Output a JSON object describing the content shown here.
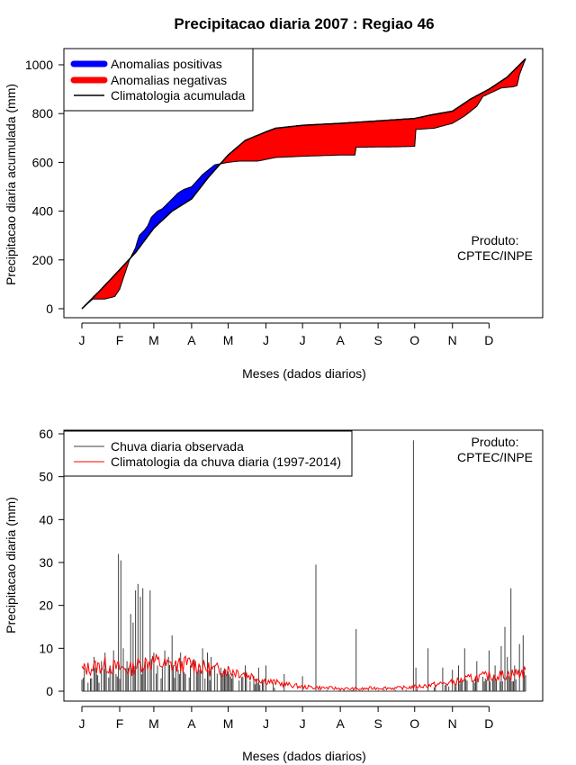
{
  "chart_data": [
    {
      "type": "area",
      "title": "Precipitacao diaria 2007 : Regiao 46",
      "xlabel": "Meses (dados diarios)",
      "ylabel": "Precipitacao diaria acumulada (mm)",
      "xlim": [
        1,
        365
      ],
      "ylim": [
        0,
        1000
      ],
      "yticks": [
        "0",
        "200",
        "400",
        "600",
        "800",
        "1000"
      ],
      "month_labels": [
        "J",
        "F",
        "M",
        "A",
        "M",
        "J",
        "J",
        "A",
        "S",
        "O",
        "N",
        "D"
      ],
      "legend": [
        "Anomalias positivas",
        "Anomalias negativas",
        "Climatologia acumulada"
      ],
      "colors": {
        "positive": "#0000ff",
        "negative": "#ff0000",
        "climatology": "#000000"
      },
      "product_label_line1": "Produto:",
      "product_label_line2": "CPTEC/INPE",
      "climatology_day": [
        1,
        15,
        32,
        45,
        60,
        75,
        91,
        105,
        121,
        135,
        152,
        160,
        182,
        213,
        244,
        274,
        288,
        305,
        320,
        335,
        350,
        365
      ],
      "climatology_mm": [
        0,
        70,
        160,
        230,
        330,
        400,
        450,
        540,
        630,
        690,
        725,
        740,
        752,
        760,
        770,
        780,
        795,
        810,
        860,
        900,
        950,
        1025
      ],
      "observed_day": [
        1,
        10,
        20,
        28,
        32,
        40,
        45,
        48,
        52,
        55,
        58,
        60,
        63,
        67,
        70,
        75,
        80,
        85,
        91,
        100,
        110,
        121,
        130,
        145,
        160,
        182,
        213,
        225,
        226,
        260,
        270,
        273,
        274,
        275,
        290,
        305,
        315,
        325,
        330,
        345,
        355,
        358,
        360,
        365
      ],
      "observed_mm": [
        0,
        40,
        40,
        50,
        80,
        200,
        250,
        300,
        320,
        340,
        375,
        385,
        400,
        410,
        425,
        450,
        475,
        490,
        500,
        550,
        590,
        600,
        605,
        605,
        620,
        625,
        630,
        630,
        662,
        664,
        665,
        666,
        666,
        735,
        740,
        760,
        790,
        830,
        870,
        905,
        910,
        915,
        960,
        1025
      ]
    },
    {
      "type": "bar",
      "xlabel": "Meses (dados diarios)",
      "ylabel": "Precipitacao diaria (mm)",
      "xlim": [
        1,
        365
      ],
      "ylim": [
        0,
        60
      ],
      "yticks": [
        "0",
        "10",
        "20",
        "30",
        "40",
        "50",
        "60"
      ],
      "month_labels": [
        "J",
        "F",
        "M",
        "A",
        "M",
        "J",
        "J",
        "A",
        "S",
        "O",
        "N",
        "D"
      ],
      "legend": [
        "Chuva diaria observada",
        "Climatologia da chuva diaria (1997-2014)"
      ],
      "colors": {
        "observed": "#404040",
        "climatology": "#ff0000"
      },
      "product_label_line1": "Produto:",
      "product_label_line2": "CPTEC/INPE",
      "daily_peaks_day": [
        3,
        6,
        8,
        11,
        13,
        15,
        17,
        20,
        24,
        27,
        29,
        31,
        33,
        35,
        38,
        41,
        43,
        45,
        47,
        49,
        51,
        53,
        55,
        57,
        60,
        63,
        66,
        69,
        72,
        75,
        78,
        80,
        82,
        86,
        90,
        93,
        97,
        100,
        104,
        107,
        110,
        115,
        120,
        125,
        130,
        135,
        146,
        152,
        158,
        167,
        182,
        193,
        226,
        273,
        275,
        285,
        297,
        305,
        310,
        315,
        325,
        335,
        340,
        345,
        348,
        350,
        353,
        356,
        360,
        363
      ],
      "daily_peaks_mm": [
        5.5,
        2,
        3,
        8,
        4,
        2,
        7,
        9,
        6,
        9.5,
        4,
        32,
        30.5,
        10,
        7,
        18,
        16,
        23.5,
        25,
        22,
        24,
        7,
        6,
        23.5,
        9,
        6,
        3,
        9.5,
        8,
        13,
        6,
        5,
        9,
        4,
        6,
        7.5,
        5,
        10,
        9,
        8,
        6,
        5.5,
        4,
        4,
        2.5,
        6,
        5.5,
        6,
        2,
        4,
        3.5,
        29.5,
        14.5,
        58.5,
        5.5,
        10,
        5.5,
        5,
        6,
        10,
        7,
        9.5,
        6,
        10.5,
        15,
        8,
        24,
        6,
        11,
        13
      ],
      "climatology_day": [
        1,
        10,
        20,
        30,
        40,
        50,
        60,
        70,
        80,
        90,
        100,
        110,
        120,
        130,
        140,
        150,
        160,
        170,
        182,
        200,
        213,
        230,
        244,
        260,
        274,
        290,
        305,
        320,
        335,
        350,
        365
      ],
      "climatology_mm": [
        5,
        5.5,
        6,
        5.5,
        5,
        6.5,
        7,
        6,
        6,
        6.5,
        5.5,
        5,
        5,
        4.5,
        3.5,
        2.5,
        2,
        1.5,
        1,
        0.8,
        0.6,
        0.5,
        0.8,
        0.7,
        1,
        1.5,
        2,
        3,
        3.5,
        3.8,
        4.5
      ]
    }
  ]
}
